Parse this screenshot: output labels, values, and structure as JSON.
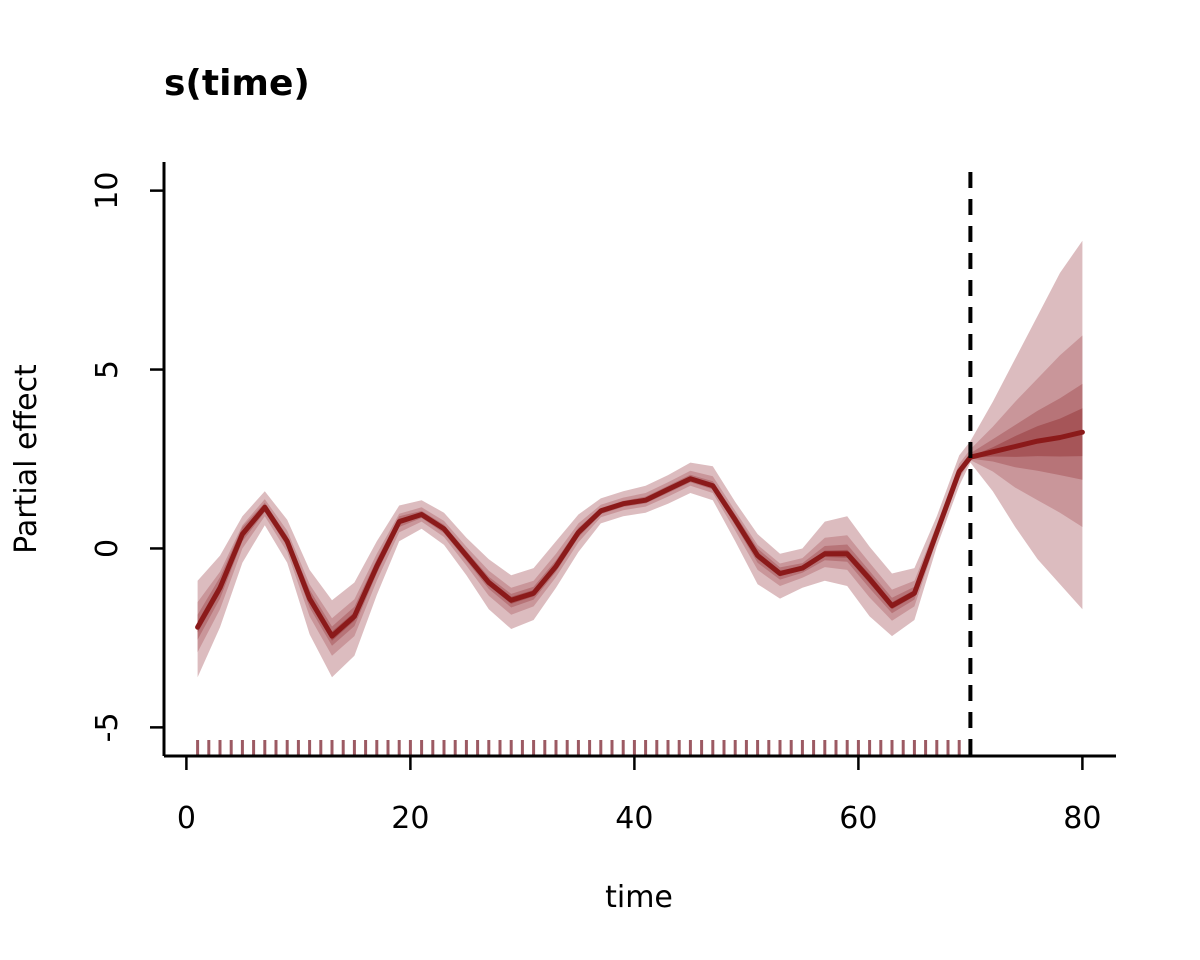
{
  "chart_data": {
    "type": "line",
    "title": "s(time)",
    "xlabel": "time",
    "ylabel": "Partial effect",
    "xlim": [
      -2,
      83
    ],
    "ylim": [
      -5.8,
      10.8
    ],
    "xticks": [
      0,
      20,
      40,
      60,
      80
    ],
    "yticks": [
      -5,
      0,
      5,
      10
    ],
    "grid": false,
    "legend": "none",
    "forecast_start": 70,
    "colors": {
      "line": "#8b1a1a",
      "band_outer": "#dcbcbf",
      "band_2": "#c9969a",
      "band_3": "#b77478",
      "band_inner": "#a65558",
      "rug": "#9c5a63"
    },
    "x": [
      1,
      3,
      5,
      7,
      9,
      11,
      13,
      15,
      17,
      19,
      21,
      23,
      25,
      27,
      29,
      31,
      33,
      35,
      37,
      39,
      41,
      43,
      45,
      47,
      49,
      51,
      53,
      55,
      57,
      59,
      61,
      63,
      65,
      67,
      69,
      70,
      72,
      74,
      76,
      78,
      80
    ],
    "series": [
      {
        "values": [
          -2.2,
          -1.1,
          0.4,
          1.15,
          0.2,
          -1.4,
          -2.45,
          -1.9,
          -0.5,
          0.75,
          0.95,
          0.55,
          -0.2,
          -0.95,
          -1.45,
          -1.25,
          -0.5,
          0.45,
          1.05,
          1.25,
          1.35,
          1.65,
          1.95,
          1.75,
          0.8,
          -0.2,
          -0.7,
          -0.55,
          -0.15,
          -0.15,
          -0.85,
          -1.6,
          -1.25,
          0.45,
          2.15,
          2.55,
          2.7,
          2.85,
          3.0,
          3.1,
          3.25
        ],
        "bands": [
          {
            "lower": [
              -3.6,
              -2.2,
              -0.4,
              0.65,
              -0.4,
              -2.4,
              -3.6,
              -3.0,
              -1.3,
              0.2,
              0.55,
              0.1,
              -0.75,
              -1.7,
              -2.25,
              -2.0,
              -1.1,
              -0.1,
              0.7,
              0.9,
              1.0,
              1.25,
              1.55,
              1.35,
              0.2,
              -1.0,
              -1.4,
              -1.1,
              -0.9,
              -1.05,
              -1.9,
              -2.45,
              -2.0,
              0.05,
              1.75,
              2.4,
              1.6,
              0.6,
              -0.3,
              -1.0,
              -1.7
            ],
            "upper": [
              -0.9,
              -0.2,
              0.9,
              1.6,
              0.8,
              -0.6,
              -1.45,
              -0.95,
              0.2,
              1.2,
              1.35,
              1.0,
              0.3,
              -0.3,
              -0.75,
              -0.55,
              0.2,
              0.95,
              1.4,
              1.6,
              1.75,
              2.05,
              2.4,
              2.3,
              1.3,
              0.4,
              -0.15,
              0.0,
              0.75,
              0.9,
              0.05,
              -0.7,
              -0.55,
              0.9,
              2.6,
              3.0,
              4.1,
              5.3,
              6.5,
              7.7,
              8.6
            ]
          },
          {
            "lower": [
              -2.9,
              -1.7,
              0.0,
              0.9,
              -0.1,
              -1.9,
              -3.0,
              -2.45,
              -0.9,
              0.45,
              0.75,
              0.32,
              -0.48,
              -1.32,
              -1.85,
              -1.62,
              -0.8,
              0.17,
              0.87,
              1.07,
              1.17,
              1.45,
              1.75,
              1.55,
              0.5,
              -0.6,
              -1.05,
              -0.82,
              -0.52,
              -0.6,
              -1.37,
              -2.02,
              -1.62,
              0.25,
              1.95,
              2.47,
              2.15,
              1.7,
              1.35,
              1.0,
              0.6
            ],
            "upper": [
              -1.5,
              -0.65,
              0.65,
              1.38,
              0.5,
              -1.0,
              -1.95,
              -1.42,
              -0.15,
              0.97,
              1.15,
              0.77,
              0.05,
              -0.62,
              -1.1,
              -0.9,
              -0.15,
              0.7,
              1.22,
              1.42,
              1.55,
              1.85,
              2.17,
              2.02,
              1.05,
              0.1,
              -0.42,
              -0.27,
              0.3,
              0.37,
              -0.4,
              -1.15,
              -0.9,
              0.67,
              2.37,
              2.77,
              3.4,
              4.1,
              4.75,
              5.4,
              5.95
            ]
          },
          {
            "lower": [
              -2.55,
              -1.4,
              0.2,
              1.02,
              0.05,
              -1.65,
              -2.72,
              -2.17,
              -0.7,
              0.6,
              0.85,
              0.43,
              -0.34,
              -1.13,
              -1.65,
              -1.43,
              -0.65,
              0.31,
              0.96,
              1.16,
              1.26,
              1.55,
              1.85,
              1.65,
              0.65,
              -0.4,
              -0.87,
              -0.68,
              -0.33,
              -0.37,
              -1.11,
              -1.81,
              -1.43,
              0.35,
              2.05,
              2.51,
              2.43,
              2.27,
              2.17,
              2.05,
              1.92
            ],
            "upper": [
              -1.85,
              -0.8,
              0.6,
              1.28,
              0.35,
              -1.15,
              -2.18,
              -1.63,
              -0.3,
              0.9,
              1.05,
              0.66,
              -0.07,
              -0.79,
              -1.27,
              -1.07,
              -0.33,
              0.58,
              1.13,
              1.33,
              1.45,
              1.75,
              2.06,
              1.88,
              0.95,
              0.0,
              -0.53,
              -0.41,
              0.07,
              0.11,
              -0.63,
              -1.38,
              -1.07,
              0.56,
              2.26,
              2.66,
              3.05,
              3.45,
              3.85,
              4.2,
              4.6
            ]
          },
          {
            "lower": [
              -2.35,
              -1.25,
              0.3,
              1.08,
              0.12,
              -1.5,
              -2.58,
              -2.02,
              -0.6,
              0.67,
              0.9,
              0.49,
              -0.27,
              -1.04,
              -1.55,
              -1.34,
              -0.58,
              0.38,
              1.0,
              1.2,
              1.3,
              1.6,
              1.9,
              1.7,
              0.72,
              -0.3,
              -0.78,
              -0.61,
              -0.24,
              -0.26,
              -0.98,
              -1.7,
              -1.34,
              0.4,
              2.1,
              2.53,
              2.57,
              2.56,
              2.58,
              2.57,
              2.58
            ],
            "upper": [
              -2.05,
              -0.95,
              0.5,
              1.22,
              0.28,
              -1.3,
              -2.32,
              -1.78,
              -0.4,
              0.83,
              1.0,
              0.61,
              -0.13,
              -0.86,
              -1.35,
              -1.16,
              -0.42,
              0.52,
              1.1,
              1.3,
              1.4,
              1.7,
              2.0,
              1.8,
              0.88,
              -0.1,
              -0.62,
              -0.49,
              -0.06,
              -0.04,
              -0.72,
              -1.5,
              -1.16,
              0.5,
              2.2,
              2.57,
              2.83,
              3.14,
              3.42,
              3.63,
              3.92
            ]
          }
        ]
      }
    ],
    "rug": [
      1,
      2,
      3,
      4,
      5,
      6,
      7,
      8,
      9,
      10,
      11,
      12,
      13,
      14,
      15,
      16,
      17,
      18,
      19,
      20,
      21,
      22,
      23,
      24,
      25,
      26,
      27,
      28,
      29,
      30,
      31,
      32,
      33,
      34,
      35,
      36,
      37,
      38,
      39,
      40,
      41,
      42,
      43,
      44,
      45,
      46,
      47,
      48,
      49,
      50,
      51,
      52,
      53,
      54,
      55,
      56,
      57,
      58,
      59,
      60,
      61,
      62,
      63,
      64,
      65,
      66,
      67,
      68,
      69
    ]
  }
}
